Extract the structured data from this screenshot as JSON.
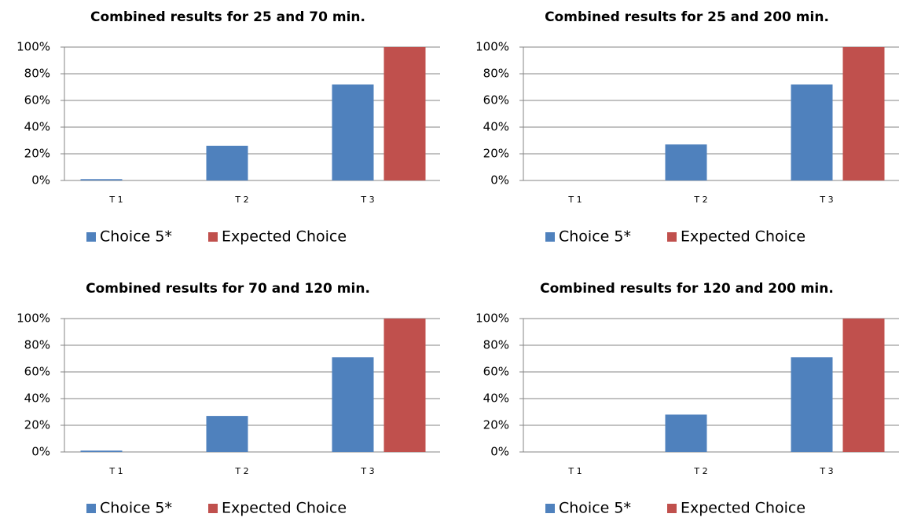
{
  "chart_data": [
    {
      "type": "bar",
      "title": "Combined results for 25 and 70 min.",
      "categories": [
        "T 1",
        "T 2",
        "T 3"
      ],
      "series": [
        {
          "name": "Choice 5*",
          "color": "#4f81bd",
          "values": [
            1,
            26,
            72
          ]
        },
        {
          "name": "Expected Choice",
          "color": "#c0504d",
          "values": [
            0,
            0,
            100
          ]
        }
      ],
      "ylim": [
        0,
        100
      ],
      "yticks": [
        {
          "value": 0,
          "label": "0%"
        },
        {
          "value": 20,
          "label": "20%"
        },
        {
          "value": 40,
          "label": "40%"
        },
        {
          "value": 60,
          "label": "60%"
        },
        {
          "value": 80,
          "label": "80%"
        },
        {
          "value": 100,
          "label": "100%"
        }
      ],
      "grid": true,
      "legend": "bottom"
    },
    {
      "type": "bar",
      "title": "Combined results for 25 and 200 min.",
      "categories": [
        "T 1",
        "T 2",
        "T 3"
      ],
      "series": [
        {
          "name": "Choice 5*",
          "color": "#4f81bd",
          "values": [
            0,
            27,
            72
          ]
        },
        {
          "name": "Expected Choice",
          "color": "#c0504d",
          "values": [
            0,
            0,
            100
          ]
        }
      ],
      "ylim": [
        0,
        100
      ],
      "yticks": [
        {
          "value": 0,
          "label": "0%"
        },
        {
          "value": 20,
          "label": "20%"
        },
        {
          "value": 40,
          "label": "40%"
        },
        {
          "value": 60,
          "label": "60%"
        },
        {
          "value": 80,
          "label": "80%"
        },
        {
          "value": 100,
          "label": "100%"
        }
      ],
      "grid": true,
      "legend": "bottom"
    },
    {
      "type": "bar",
      "title": "Combined results for 70 and 120 min.",
      "categories": [
        "T 1",
        "T 2",
        "T 3"
      ],
      "series": [
        {
          "name": "Choice 5*",
          "color": "#4f81bd",
          "values": [
            1,
            27,
            71
          ]
        },
        {
          "name": "Expected Choice",
          "color": "#c0504d",
          "values": [
            0,
            0,
            100
          ]
        }
      ],
      "ylim": [
        0,
        100
      ],
      "yticks": [
        {
          "value": 0,
          "label": "0%"
        },
        {
          "value": 20,
          "label": "20%"
        },
        {
          "value": 40,
          "label": "40%"
        },
        {
          "value": 60,
          "label": "60%"
        },
        {
          "value": 80,
          "label": "80%"
        },
        {
          "value": 100,
          "label": "100%"
        }
      ],
      "grid": true,
      "legend": "bottom"
    },
    {
      "type": "bar",
      "title": "Combined results for 120 and 200 min.",
      "categories": [
        "T 1",
        "T 2",
        "T 3"
      ],
      "series": [
        {
          "name": "Choice 5*",
          "color": "#4f81bd",
          "values": [
            0,
            28,
            71
          ]
        },
        {
          "name": "Expected Choice",
          "color": "#c0504d",
          "values": [
            0,
            0,
            100
          ]
        }
      ],
      "ylim": [
        0,
        100
      ],
      "yticks": [
        {
          "value": 0,
          "label": "0%"
        },
        {
          "value": 20,
          "label": "20%"
        },
        {
          "value": 40,
          "label": "40%"
        },
        {
          "value": 60,
          "label": "60%"
        },
        {
          "value": 80,
          "label": "80%"
        },
        {
          "value": 100,
          "label": "100%"
        }
      ],
      "grid": true,
      "legend": "bottom"
    }
  ]
}
